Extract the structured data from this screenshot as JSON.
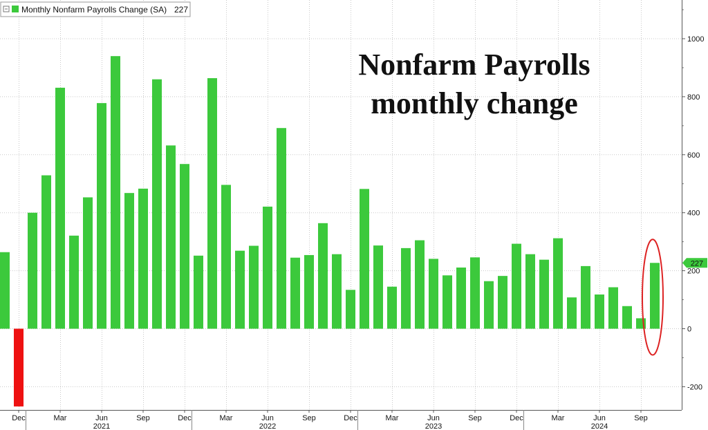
{
  "chart_data": {
    "type": "bar",
    "title_lines": [
      "Nonfarm Payrolls",
      "monthly change"
    ],
    "legend": {
      "label": "Monthly Nonfarm Payrolls Change (SA)",
      "last_value": "227",
      "placement": "top-left"
    },
    "series": [
      {
        "name": "Monthly Nonfarm Payrolls Change (SA)",
        "color": "#3cc93c",
        "negative_color": "#ee1111",
        "values": [
          264,
          -268,
          400,
          529,
          831,
          321,
          453,
          778,
          940,
          468,
          483,
          860,
          632,
          568,
          252,
          864,
          496,
          269,
          286,
          421,
          692,
          245,
          254,
          364,
          257,
          134,
          482,
          287,
          145,
          278,
          305,
          241,
          184,
          211,
          246,
          164,
          182,
          293,
          257,
          238,
          312,
          108,
          216,
          118,
          143,
          78,
          36,
          227
        ]
      }
    ],
    "x_start": "2020-11",
    "x_end": "2024-11",
    "month_tick_labels": [
      {
        "label": "Dec",
        "index": 1
      },
      {
        "label": "Mar",
        "index": 4
      },
      {
        "label": "Jun",
        "index": 7
      },
      {
        "label": "Sep",
        "index": 10
      },
      {
        "label": "Dec",
        "index": 13
      },
      {
        "label": "Mar",
        "index": 16
      },
      {
        "label": "Jun",
        "index": 19
      },
      {
        "label": "Sep",
        "index": 22
      },
      {
        "label": "Dec",
        "index": 25
      },
      {
        "label": "Mar",
        "index": 28
      },
      {
        "label": "Jun",
        "index": 31
      },
      {
        "label": "Sep",
        "index": 34
      },
      {
        "label": "Dec",
        "index": 37
      },
      {
        "label": "Mar",
        "index": 40
      },
      {
        "label": "Jun",
        "index": 43
      },
      {
        "label": "Sep",
        "index": 46
      }
    ],
    "year_labels": [
      {
        "label": "2021",
        "center_index": 7
      },
      {
        "label": "2022",
        "center_index": 19
      },
      {
        "label": "2023",
        "center_index": 31
      },
      {
        "label": "2024",
        "center_index": 43
      }
    ],
    "year_separators": [
      2,
      14,
      26,
      38
    ],
    "y_ticks": [
      1000,
      800,
      600,
      400,
      200,
      0,
      -200
    ],
    "ylim": [
      -240,
      1130
    ],
    "y_axis_position": "right",
    "grid": true,
    "last_value_marker": {
      "value": 227,
      "label": "227",
      "color": "#3cc93c"
    },
    "highlight": {
      "type": "ellipse",
      "target_index": 47,
      "color": "#dd2222"
    }
  }
}
